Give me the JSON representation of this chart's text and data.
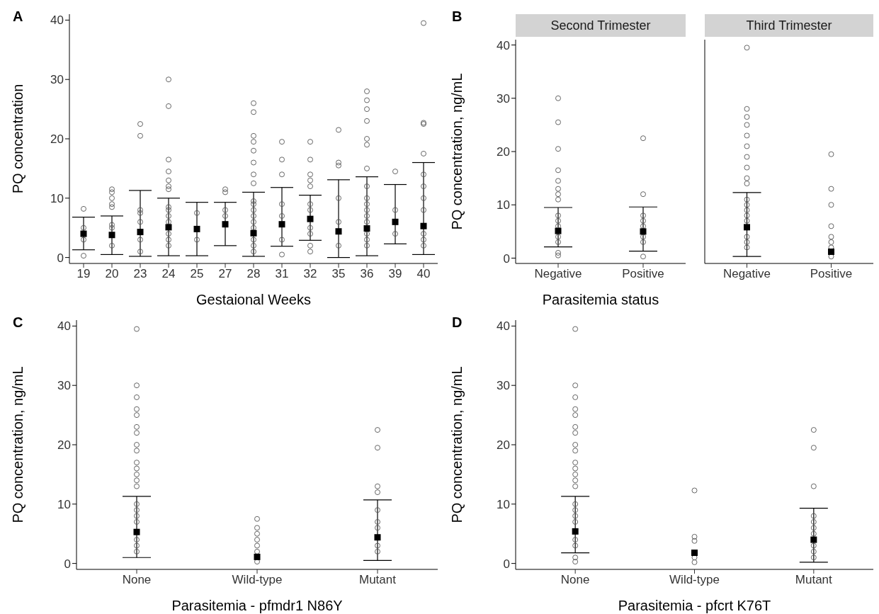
{
  "chart_data": [
    {
      "type": "scatter",
      "title": "A",
      "xlabel": "Gestaional Weeks",
      "ylabel": "PQ concentration",
      "categories": [
        "19",
        "20",
        "23",
        "24",
        "25",
        "27",
        "28",
        "31",
        "32",
        "35",
        "36",
        "39",
        "40"
      ],
      "ylim": [
        -1,
        41
      ],
      "yticks": [
        0,
        10,
        20,
        30,
        40
      ],
      "series": [
        {
          "marker": "circle",
          "color": "#555555",
          "x": [
            "19",
            "19",
            "19",
            "19",
            "20",
            "20",
            "20",
            "20",
            "20",
            "20",
            "20",
            "20",
            "23",
            "23",
            "23",
            "23",
            "23",
            "23",
            "23",
            "24",
            "24",
            "24",
            "24",
            "24",
            "24",
            "24",
            "24",
            "24",
            "24",
            "24",
            "24",
            "24",
            "24",
            "25",
            "25",
            "27",
            "27",
            "27",
            "27",
            "28",
            "28",
            "28",
            "28",
            "28",
            "28",
            "28",
            "28",
            "28",
            "28",
            "28",
            "28",
            "28",
            "28",
            "28",
            "28",
            "28",
            "31",
            "31",
            "31",
            "31",
            "31",
            "31",
            "31",
            "32",
            "32",
            "32",
            "32",
            "32",
            "32",
            "32",
            "32",
            "32",
            "32",
            "32",
            "35",
            "35",
            "35",
            "35",
            "35",
            "35",
            "36",
            "36",
            "36",
            "36",
            "36",
            "36",
            "36",
            "36",
            "36",
            "36",
            "36",
            "36",
            "36",
            "36",
            "36",
            "36",
            "39",
            "39",
            "39",
            "40",
            "40",
            "40",
            "40",
            "40",
            "40",
            "40",
            "40",
            "40",
            "40",
            "40"
          ],
          "values": [
            8.2,
            5,
            3,
            0.3,
            11,
            10,
            9,
            8.5,
            5.5,
            5,
            2,
            11.5,
            22.5,
            20.5,
            8,
            7.5,
            6,
            3,
            1,
            30,
            25.5,
            16.5,
            14.5,
            13,
            12,
            11.5,
            8.5,
            8,
            7,
            6,
            4,
            3,
            2,
            7.5,
            3,
            11.5,
            11,
            8,
            7,
            26,
            24.5,
            20.5,
            19.5,
            18,
            16,
            14,
            12.5,
            9.5,
            9,
            8,
            7,
            6,
            5,
            3,
            2,
            1,
            19.5,
            16.5,
            14,
            9,
            7,
            3,
            0.5,
            19.5,
            16.5,
            14,
            13,
            12,
            9,
            8,
            5,
            4,
            2,
            1,
            21.5,
            16,
            15.5,
            10,
            6,
            2,
            28,
            26.5,
            25,
            23,
            20,
            19,
            15,
            12,
            10,
            9,
            8,
            7,
            6,
            4,
            3,
            2,
            14.5,
            8,
            4,
            39.5,
            22.5,
            22.7,
            17.5,
            14,
            12,
            10,
            8,
            4,
            3,
            2
          ]
        },
        {
          "marker": "square",
          "color": "#000000",
          "values": [
            4,
            3.8,
            4.3,
            5.1,
            4.8,
            5.6,
            4.1,
            5.6,
            6.5,
            4.4,
            4.9,
            6,
            5.3
          ],
          "errors": [
            [
              1.3,
              6.8
            ],
            [
              0.5,
              7
            ],
            [
              0.2,
              11.3
            ],
            [
              0.3,
              10
            ],
            [
              0.3,
              9.3
            ],
            [
              2,
              9.3
            ],
            [
              0.2,
              11
            ],
            [
              1.9,
              11.8
            ],
            [
              2.9,
              10.5
            ],
            [
              0,
              13.1
            ],
            [
              0.3,
              13.6
            ],
            [
              2.3,
              12.3
            ],
            [
              0.5,
              16
            ]
          ]
        }
      ]
    },
    {
      "type": "scatter",
      "title": "B",
      "subtitle": "Second Trimester",
      "xlabel": "Parasitemia status",
      "ylabel": "PQ concentration, ng/mL",
      "categories": [
        "Negative",
        "Positive"
      ],
      "ylim": [
        -1,
        41
      ],
      "yticks": [
        0,
        10,
        20,
        30,
        40
      ],
      "series": [
        {
          "marker": "circle",
          "color": "#555555",
          "x": [
            "Negative",
            "Negative",
            "Negative",
            "Negative",
            "Negative",
            "Negative",
            "Negative",
            "Negative",
            "Negative",
            "Negative",
            "Negative",
            "Negative",
            "Negative",
            "Negative",
            "Negative",
            "Positive",
            "Positive",
            "Positive",
            "Positive",
            "Positive",
            "Positive",
            "Positive",
            "Positive"
          ],
          "values": [
            30,
            25.5,
            20.5,
            16.5,
            14.5,
            13,
            12,
            11,
            8,
            7,
            6,
            4,
            3,
            1,
            0.5,
            22.5,
            12,
            8,
            7,
            6,
            4,
            3,
            0.3
          ]
        },
        {
          "marker": "square",
          "color": "#000000",
          "values": [
            5.1,
            5
          ],
          "errors": [
            [
              2.1,
              9.5
            ],
            [
              1.3,
              9.6
            ]
          ]
        }
      ]
    },
    {
      "type": "scatter",
      "subtitle": "Third Trimester",
      "tick_labels": "x",
      "categories": [
        "Negative",
        "Positive"
      ],
      "ylim": [
        -1,
        41
      ],
      "yticks": [
        0,
        10,
        20,
        30,
        40
      ],
      "series": [
        {
          "marker": "circle",
          "color": "#555555",
          "x": [
            "Negative",
            "Negative",
            "Negative",
            "Negative",
            "Negative",
            "Negative",
            "Negative",
            "Negative",
            "Negative",
            "Negative",
            "Negative",
            "Negative",
            "Negative",
            "Negative",
            "Negative",
            "Negative",
            "Negative",
            "Negative",
            "Positive",
            "Positive",
            "Positive",
            "Positive",
            "Positive",
            "Positive",
            "Positive",
            "Positive"
          ],
          "values": [
            39.5,
            28,
            26.5,
            25,
            23,
            21,
            19,
            17,
            15,
            14,
            11,
            10,
            9,
            8,
            7,
            4,
            3,
            2,
            19.5,
            13,
            10,
            6,
            4,
            3,
            2,
            0.3
          ]
        },
        {
          "marker": "square",
          "color": "#000000",
          "values": [
            5.8,
            1.2
          ],
          "errors": [
            [
              0.3,
              12.3
            ],
            null
          ]
        }
      ]
    },
    {
      "type": "scatter",
      "title": "C",
      "xlabel": "Parasitemia - pfmdr1 N86Y",
      "ylabel": "PQ concentration, ng/mL",
      "categories": [
        "None",
        "Wild-type",
        "Mutant"
      ],
      "ylim": [
        -1,
        41
      ],
      "yticks": [
        0,
        10,
        20,
        30,
        40
      ],
      "series": [
        {
          "marker": "circle",
          "color": "#555555",
          "x": [
            "None",
            "None",
            "None",
            "None",
            "None",
            "None",
            "None",
            "None",
            "None",
            "None",
            "None",
            "None",
            "None",
            "None",
            "None",
            "None",
            "None",
            "None",
            "None",
            "None",
            "None",
            "Wild-type",
            "Wild-type",
            "Wild-type",
            "Wild-type",
            "Wild-type",
            "Wild-type",
            "Wild-type",
            "Mutant",
            "Mutant",
            "Mutant",
            "Mutant",
            "Mutant",
            "Mutant",
            "Mutant",
            "Mutant",
            "Mutant"
          ],
          "values": [
            39.5,
            30,
            28,
            26,
            25,
            23,
            22,
            20,
            19,
            17,
            16,
            15,
            14,
            13,
            10,
            9,
            8,
            7,
            4,
            3,
            2,
            7.5,
            6,
            5,
            4,
            3,
            2,
            0.3,
            22.5,
            19.5,
            13,
            12,
            9,
            7,
            6,
            3,
            2
          ]
        },
        {
          "marker": "square",
          "color": "#000000",
          "values": [
            5.3,
            1.1,
            4.4
          ],
          "errors": [
            [
              1,
              11.3
            ],
            null,
            [
              0.5,
              10.7
            ]
          ]
        }
      ]
    },
    {
      "type": "scatter",
      "title": "D",
      "xlabel": "Parasitemia - pfcrt K76T",
      "ylabel": "PQ concentration, ng/mL",
      "categories": [
        "None",
        "Wild-type",
        "Mutant"
      ],
      "ylim": [
        -1,
        41
      ],
      "yticks": [
        0,
        10,
        20,
        30,
        40
      ],
      "series": [
        {
          "marker": "circle",
          "color": "#555555",
          "x": [
            "None",
            "None",
            "None",
            "None",
            "None",
            "None",
            "None",
            "None",
            "None",
            "None",
            "None",
            "None",
            "None",
            "None",
            "None",
            "None",
            "None",
            "None",
            "None",
            "None",
            "None",
            "None",
            "Wild-type",
            "Wild-type",
            "Wild-type",
            "Wild-type",
            "Wild-type",
            "Mutant",
            "Mutant",
            "Mutant",
            "Mutant",
            "Mutant",
            "Mutant",
            "Mutant",
            "Mutant",
            "Mutant",
            "Mutant"
          ],
          "values": [
            39.5,
            30,
            28,
            26,
            25,
            23,
            22,
            20,
            19,
            17,
            16,
            15,
            14,
            13,
            10,
            9,
            8,
            7,
            4,
            3,
            1,
            0.3,
            12.3,
            4.5,
            3.8,
            1,
            0.2,
            22.5,
            19.5,
            13,
            8,
            7,
            6,
            5,
            3,
            2,
            1
          ]
        },
        {
          "marker": "square",
          "color": "#000000",
          "values": [
            5.4,
            1.8,
            4
          ],
          "errors": [
            [
              1.8,
              11.3
            ],
            null,
            [
              0.2,
              9.3
            ]
          ]
        }
      ]
    }
  ]
}
